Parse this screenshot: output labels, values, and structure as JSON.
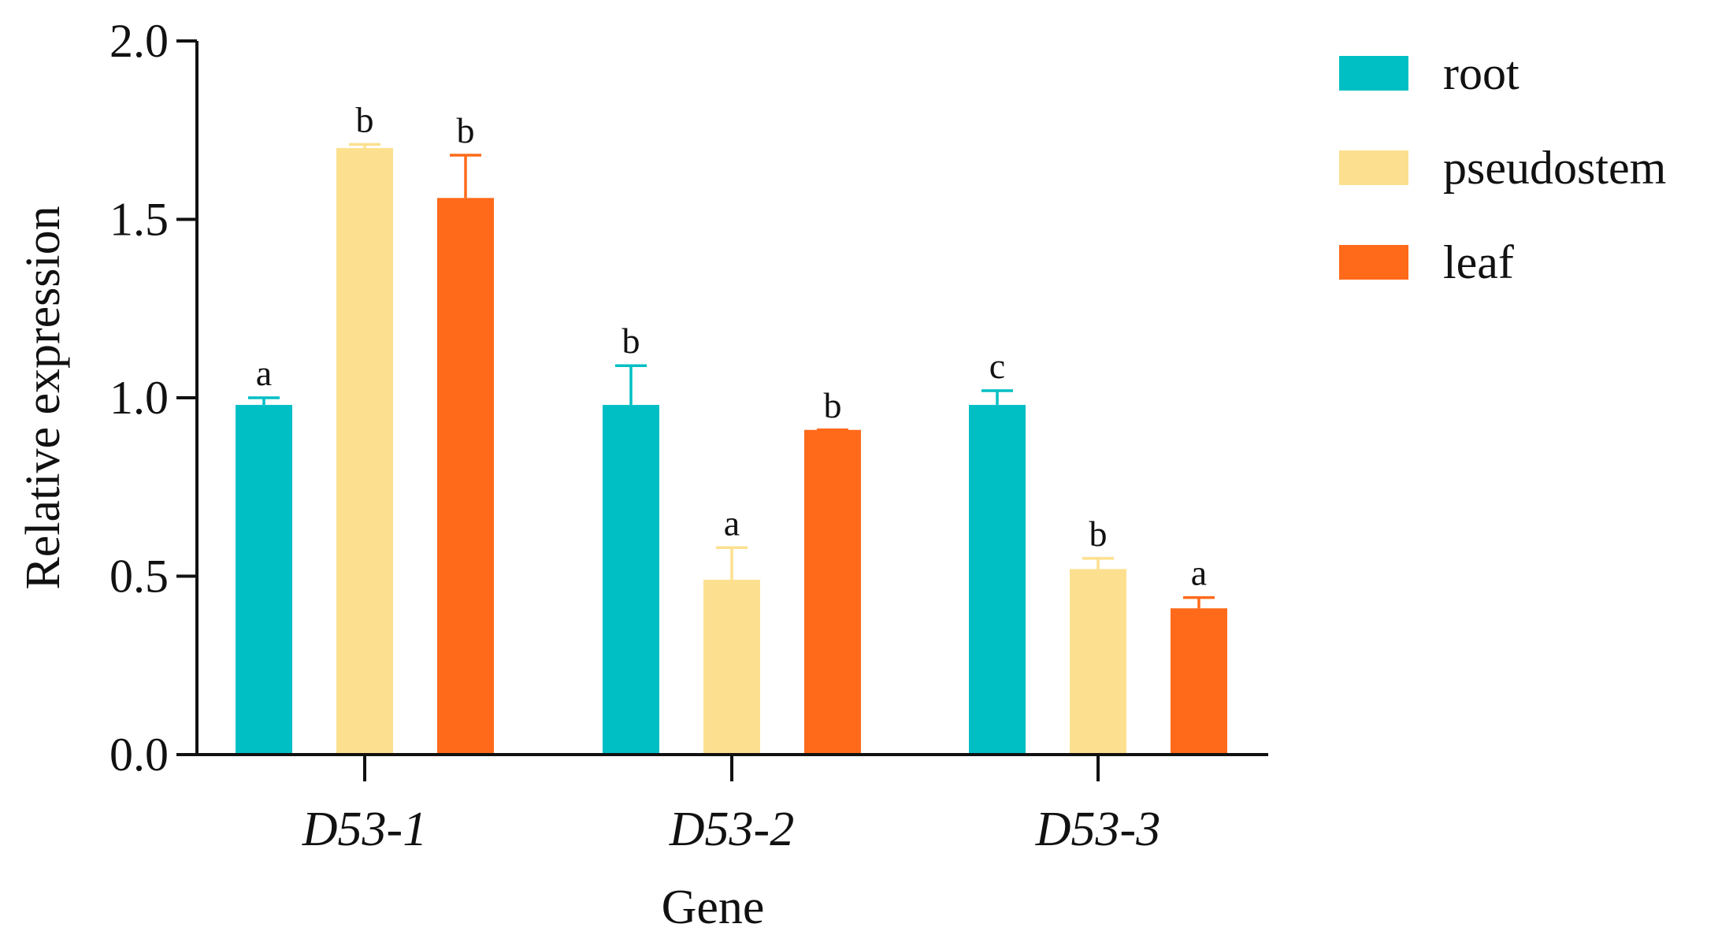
{
  "chart_data": {
    "type": "bar",
    "title": "",
    "xlabel": "Gene",
    "ylabel": "Relative expression",
    "ylim": [
      0,
      2.0
    ],
    "yticks": [
      "0.0",
      "0.5",
      "1.0",
      "1.5",
      "2.0"
    ],
    "grid": false,
    "legend_position": "top-right",
    "categories": [
      "D53-1",
      "D53-2",
      "D53-3"
    ],
    "series": [
      {
        "name": "root",
        "color": "#00BFC4",
        "values": [
          0.98,
          0.98,
          0.98
        ],
        "errors": [
          0.02,
          0.11,
          0.04
        ],
        "significance": [
          "a",
          "b",
          "c"
        ]
      },
      {
        "name": "pseudostem",
        "color": "#FDE08F",
        "values": [
          1.7,
          0.49,
          0.52
        ],
        "errors": [
          0.01,
          0.09,
          0.03
        ],
        "significance": [
          "b",
          "a",
          "b"
        ]
      },
      {
        "name": "leaf",
        "color": "#FF6A1A",
        "values": [
          1.56,
          0.91,
          0.41
        ],
        "errors": [
          0.12,
          0.0,
          0.03
        ],
        "significance": [
          "b",
          "b",
          "a"
        ]
      }
    ]
  }
}
